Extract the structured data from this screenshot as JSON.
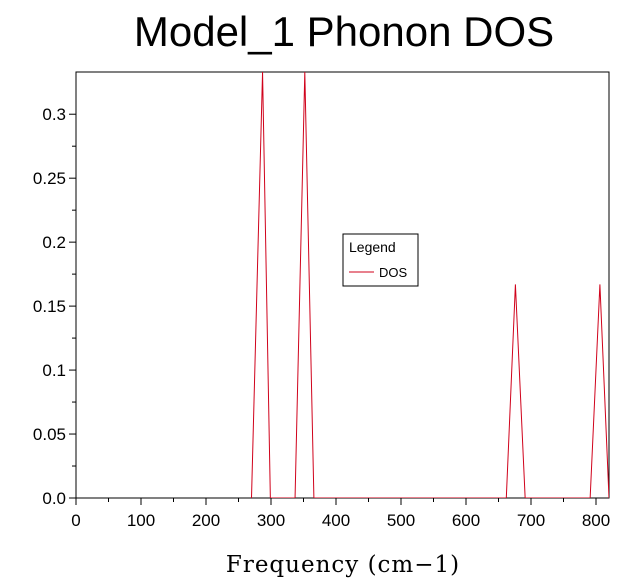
{
  "chart_data": {
    "type": "line",
    "title": "Model_1 Phonon DOS",
    "xlabel": "Frequency (cm−1)",
    "ylabel": "",
    "xlim": [
      0,
      820
    ],
    "ylim": [
      0,
      0.333
    ],
    "xticks": [
      0,
      100,
      200,
      300,
      400,
      500,
      600,
      700,
      800
    ],
    "xtick_labels": [
      "0",
      "100",
      "200",
      "300",
      "400",
      "500",
      "600",
      "700",
      "800"
    ],
    "yticks": [
      0,
      0.05,
      0.1,
      0.15,
      0.2,
      0.25,
      0.3
    ],
    "ytick_labels": [
      "0.0",
      "0.05",
      "0.1",
      "0.15",
      "0.2",
      "0.25",
      "0.3"
    ],
    "grid": false,
    "legend": {
      "title": "Legend",
      "placement": "center-right"
    },
    "series": [
      {
        "name": "DOS",
        "color": "#d0021b",
        "x": [
          270,
          287,
          299,
          337,
          352,
          366,
          662,
          676,
          691,
          791,
          806,
          820
        ],
        "y": [
          0.0,
          0.333,
          0.0,
          0.0,
          0.333,
          0.0,
          0.0,
          0.167,
          0.0,
          0.0,
          0.167,
          0.0
        ]
      }
    ]
  }
}
